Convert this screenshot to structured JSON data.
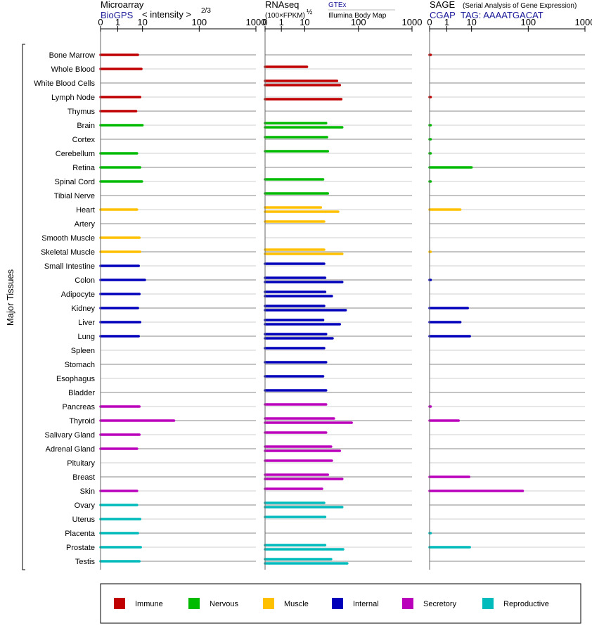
{
  "y_axis_label": "Major Tissues",
  "microarray": {
    "title": "Microarray",
    "source": "BioGPS",
    "scale_label": "< intensity >",
    "exponent": "2/3",
    "ticks": [
      "0",
      "1",
      "10",
      "100",
      "1000"
    ]
  },
  "rnaseq": {
    "title": "RNAseq",
    "unit_label": "(100×FPKM)",
    "exponent": "½",
    "source1": "GTEx",
    "source2": "Illumina Body Map",
    "ticks": [
      "0",
      "1",
      "10",
      "100",
      "1000"
    ]
  },
  "sage": {
    "title": "SAGE",
    "subtitle": "(Serial Analysis of Gene Expression)",
    "source": "CGAP",
    "tag_label": "TAG: AAAATGACAT",
    "ticks": [
      "0",
      "1",
      "10",
      "100",
      "1000"
    ]
  },
  "legend": [
    {
      "key": "immune",
      "label": "Immune",
      "color": "#c00000"
    },
    {
      "key": "nervous",
      "label": "Nervous",
      "color": "#00bb00"
    },
    {
      "key": "muscle",
      "label": "Muscle",
      "color": "#ffc000"
    },
    {
      "key": "internal",
      "label": "Internal",
      "color": "#0000bb"
    },
    {
      "key": "secretory",
      "label": "Secretory",
      "color": "#bb00bb"
    },
    {
      "key": "reproductive",
      "label": "Reproductive",
      "color": "#00bbbb"
    }
  ],
  "chart_data": {
    "type": "bar",
    "orientation": "horizontal",
    "scale": "log",
    "x_ticks": [
      0,
      1,
      10,
      100,
      1000
    ],
    "categories": [
      "Bone Marrow",
      "Whole Blood",
      "White Blood Cells",
      "Lymph Node",
      "Thymus",
      "Brain",
      "Cortex",
      "Cerebellum",
      "Retina",
      "Spinal Cord",
      "Tibial Nerve",
      "Heart",
      "Artery",
      "Smooth Muscle",
      "Skeletal Muscle",
      "Small Intestine",
      "Colon",
      "Adipocyte",
      "Kidney",
      "Liver",
      "Lung",
      "Spleen",
      "Stomach",
      "Esophagus",
      "Bladder",
      "Pancreas",
      "Thyroid",
      "Salivary Gland",
      "Adrenal Gland",
      "Pituitary",
      "Breast",
      "Skin",
      "Ovary",
      "Uterus",
      "Placenta",
      "Prostate",
      "Testis"
    ],
    "groups": [
      "immune",
      "immune",
      "immune",
      "immune",
      "immune",
      "nervous",
      "nervous",
      "nervous",
      "nervous",
      "nervous",
      "nervous",
      "muscle",
      "muscle",
      "muscle",
      "muscle",
      "internal",
      "internal",
      "internal",
      "internal",
      "internal",
      "internal",
      "internal",
      "internal",
      "internal",
      "internal",
      "secretory",
      "secretory",
      "secretory",
      "secretory",
      "secretory",
      "secretory",
      "secretory",
      "reproductive",
      "reproductive",
      "reproductive",
      "reproductive",
      "reproductive"
    ],
    "microarray": [
      6.5,
      9,
      null,
      8,
      5.5,
      10,
      null,
      6,
      8,
      9.5,
      null,
      6,
      null,
      7.5,
      8,
      7,
      11,
      7.5,
      6.5,
      8,
      7,
      null,
      null,
      null,
      null,
      7.5,
      36,
      7.5,
      6,
      null,
      null,
      6,
      6,
      8,
      6.5,
      8.5,
      7.5
    ],
    "rnaseq_gtex": [
      null,
      11,
      40,
      null,
      null,
      25,
      26,
      27,
      null,
      22,
      27,
      20,
      23,
      null,
      23,
      23,
      24,
      24,
      23,
      22,
      25,
      23,
      25,
      22,
      25,
      25,
      35,
      25,
      31,
      32,
      27,
      21,
      23,
      24,
      null,
      24,
      31
    ],
    "rnaseq_ibm": [
      null,
      null,
      45,
      48,
      null,
      50,
      null,
      null,
      null,
      null,
      null,
      42,
      null,
      null,
      50,
      null,
      50,
      32,
      58,
      45,
      33,
      null,
      null,
      null,
      null,
      null,
      75,
      null,
      45,
      null,
      50,
      null,
      50,
      null,
      null,
      52,
      62
    ],
    "sage": [
      0.05,
      null,
      null,
      0.05,
      null,
      0.02,
      0.02,
      0.02,
      10,
      0.02,
      null,
      3.5,
      null,
      null,
      0.02,
      null,
      0.05,
      null,
      7,
      3.5,
      8.5,
      null,
      null,
      null,
      null,
      0.05,
      3,
      null,
      null,
      null,
      8,
      80,
      null,
      null,
      0.02,
      8.5,
      null
    ]
  }
}
